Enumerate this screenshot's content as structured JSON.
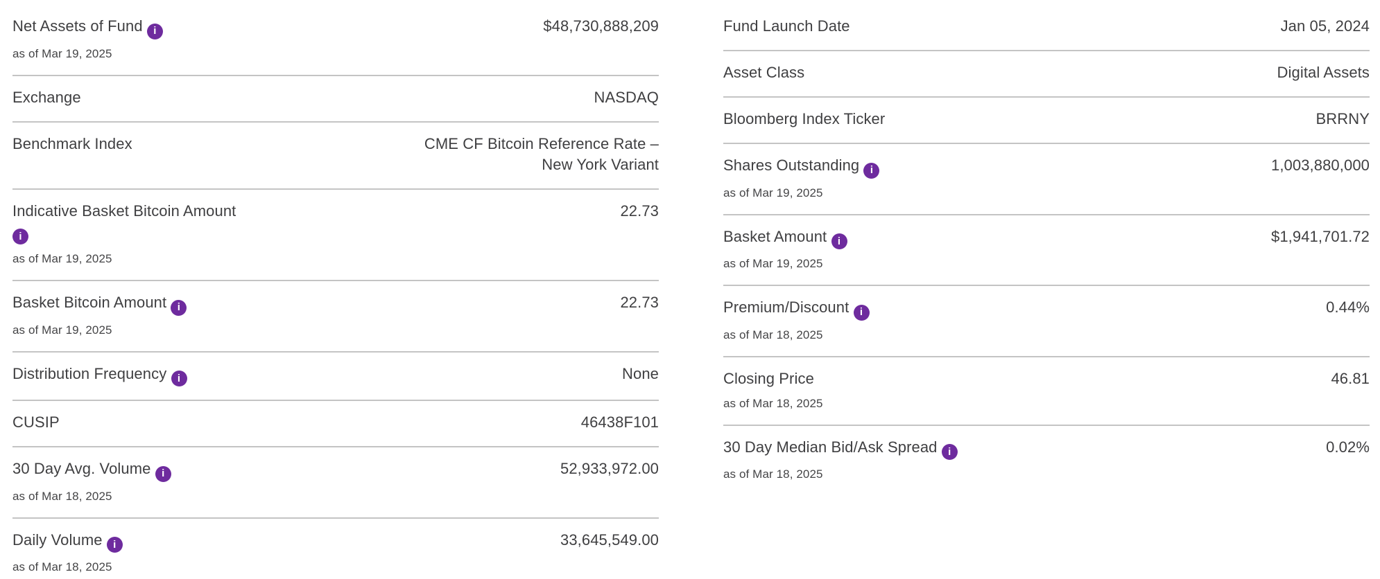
{
  "theme": {
    "accent_purple": "#6e2b9e",
    "text_color": "#3f3f41",
    "divider_color": "#c4c4c4",
    "background": "#ffffff"
  },
  "info_icon": {
    "name": "info-icon",
    "glyph": "i"
  },
  "columns": [
    {
      "name": "left",
      "rows": [
        {
          "label": "Net Assets of Fund",
          "has_info": true,
          "as_of": "as of Mar 19, 2025",
          "value": "$48,730,888,209"
        },
        {
          "label": "Exchange",
          "has_info": false,
          "as_of": "",
          "value": "NASDAQ"
        },
        {
          "label": "Benchmark Index",
          "has_info": false,
          "as_of": "",
          "value": "CME CF Bitcoin Reference Rate – New York Variant"
        },
        {
          "label": "Indicative Basket Bitcoin Amount",
          "has_info": true,
          "as_of": "as of Mar 19, 2025",
          "value": "22.73"
        },
        {
          "label": "Basket Bitcoin Amount",
          "has_info": true,
          "as_of": "as of Mar 19, 2025",
          "value": "22.73"
        },
        {
          "label": "Distribution Frequency",
          "has_info": true,
          "as_of": "",
          "value": "None"
        },
        {
          "label": "CUSIP",
          "has_info": false,
          "as_of": "",
          "value": "46438F101"
        },
        {
          "label": "30 Day Avg. Volume",
          "has_info": true,
          "as_of": "as of Mar 18, 2025",
          "value": "52,933,972.00"
        },
        {
          "label": "Daily Volume",
          "has_info": true,
          "as_of": "as of Mar 18, 2025",
          "value": "33,645,549.00"
        }
      ]
    },
    {
      "name": "right",
      "rows": [
        {
          "label": "Fund Launch Date",
          "has_info": false,
          "as_of": "",
          "value": "Jan 05, 2024"
        },
        {
          "label": "Asset Class",
          "has_info": false,
          "as_of": "",
          "value": "Digital Assets"
        },
        {
          "label": "Bloomberg Index Ticker",
          "has_info": false,
          "as_of": "",
          "value": "BRRNY"
        },
        {
          "label": "Shares Outstanding",
          "has_info": true,
          "as_of": "as of Mar 19, 2025",
          "value": "1,003,880,000"
        },
        {
          "label": "Basket Amount",
          "has_info": true,
          "as_of": "as of Mar 19, 2025",
          "value": "$1,941,701.72"
        },
        {
          "label": "Premium/Discount",
          "has_info": true,
          "as_of": "as of Mar 18, 2025",
          "value": "0.44%"
        },
        {
          "label": "Closing Price",
          "has_info": false,
          "as_of": "as of Mar 18, 2025",
          "value": "46.81"
        },
        {
          "label": "30 Day Median Bid/Ask Spread",
          "has_info": true,
          "as_of": "as of Mar 18, 2025",
          "value": "0.02%"
        }
      ]
    }
  ]
}
